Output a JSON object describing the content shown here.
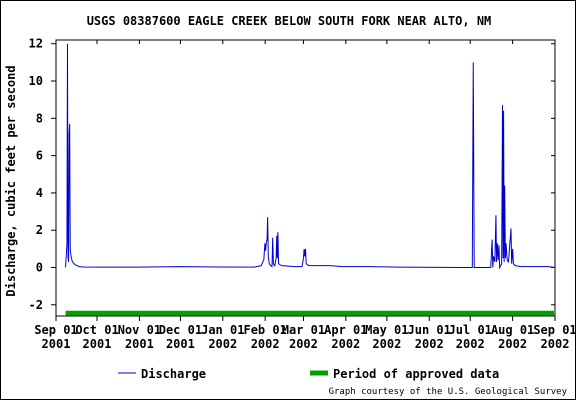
{
  "chart_data": {
    "type": "line",
    "title": "USGS 08387600 EAGLE CREEK BELOW SOUTH FORK NEAR ALTO, NM",
    "xlabel": "",
    "ylabel": "Discharge, cubic feet per second",
    "ylim": [
      -2.6,
      12.2
    ],
    "yticks": [
      -2,
      0,
      2,
      4,
      6,
      8,
      10,
      12
    ],
    "xlim": [
      0,
      365
    ],
    "xticks": [
      {
        "day": 0,
        "month": "Sep 01",
        "year": "2001"
      },
      {
        "day": 30,
        "month": "Oct 01",
        "year": "2001"
      },
      {
        "day": 61,
        "month": "Nov 01",
        "year": "2001"
      },
      {
        "day": 91,
        "month": "Dec 01",
        "year": "2001"
      },
      {
        "day": 122,
        "month": "Jan 01",
        "year": "2002"
      },
      {
        "day": 153,
        "month": "Feb 01",
        "year": "2002"
      },
      {
        "day": 181,
        "month": "Mar 01",
        "year": "2002"
      },
      {
        "day": 212,
        "month": "Apr 01",
        "year": "2002"
      },
      {
        "day": 242,
        "month": "May 01",
        "year": "2002"
      },
      {
        "day": 273,
        "month": "Jun 01",
        "year": "2002"
      },
      {
        "day": 303,
        "month": "Jul 01",
        "year": "2002"
      },
      {
        "day": 334,
        "month": "Aug 01",
        "year": "2002"
      },
      {
        "day": 365,
        "month": "Sep 01",
        "year": "2002"
      }
    ],
    "grid": false,
    "legend_position": "bottom",
    "series": [
      {
        "name": "Discharge",
        "color": "#0000cc",
        "points": [
          [
            7,
            0.0
          ],
          [
            8,
            1.3
          ],
          [
            8.4,
            12.0
          ],
          [
            8.8,
            0.6
          ],
          [
            9.2,
            0.3
          ],
          [
            9.6,
            7.2
          ],
          [
            10.0,
            7.7
          ],
          [
            10.4,
            1.0
          ],
          [
            11,
            0.6
          ],
          [
            12,
            0.3
          ],
          [
            14,
            0.15
          ],
          [
            17,
            0.05
          ],
          [
            20,
            0.03
          ],
          [
            30,
            0.02
          ],
          [
            60,
            0.02
          ],
          [
            90,
            0.05
          ],
          [
            120,
            0.03
          ],
          [
            145,
            0.02
          ],
          [
            150,
            0.1
          ],
          [
            152,
            0.4
          ],
          [
            152.8,
            1.3
          ],
          [
            153.3,
            0.9
          ],
          [
            153.8,
            1.3
          ],
          [
            154.4,
            1.5
          ],
          [
            154.8,
            2.7
          ],
          [
            155.3,
            0.6
          ],
          [
            156,
            0.2
          ],
          [
            157,
            0.1
          ],
          [
            158,
            0.05
          ],
          [
            158.5,
            1.6
          ],
          [
            159,
            0.2
          ],
          [
            160,
            0.1
          ],
          [
            161,
            0.5
          ],
          [
            161.5,
            1.7
          ],
          [
            161.9,
            0.5
          ],
          [
            162.3,
            1.9
          ],
          [
            162.8,
            0.2
          ],
          [
            165,
            0.1
          ],
          [
            175,
            0.05
          ],
          [
            180,
            0.05
          ],
          [
            181,
            0.5
          ],
          [
            181.5,
            1.0
          ],
          [
            182,
            0.6
          ],
          [
            182.5,
            1.0
          ],
          [
            183,
            0.2
          ],
          [
            185,
            0.1
          ],
          [
            200,
            0.1
          ],
          [
            210,
            0.05
          ],
          [
            230,
            0.05
          ],
          [
            250,
            0.02
          ],
          [
            300,
            0.0
          ],
          [
            304.5,
            0.0
          ],
          [
            305.2,
            11.0
          ],
          [
            305.9,
            0.0
          ],
          [
            318,
            0.0
          ],
          [
            319,
            1.5
          ],
          [
            319.5,
            0.0
          ],
          [
            320,
            0.6
          ],
          [
            321,
            0.3
          ],
          [
            321.8,
            2.8
          ],
          [
            322.2,
            0.3
          ],
          [
            322.8,
            1.3
          ],
          [
            323.4,
            0.4
          ],
          [
            324,
            1.2
          ],
          [
            324.5,
            0.0
          ],
          [
            326,
            0.2
          ],
          [
            326.6,
            8.7
          ],
          [
            327,
            0.5
          ],
          [
            327.4,
            8.4
          ],
          [
            327.8,
            0.3
          ],
          [
            328.2,
            4.4
          ],
          [
            328.7,
            0.5
          ],
          [
            329.2,
            1.3
          ],
          [
            330,
            0.4
          ],
          [
            331,
            0.3
          ],
          [
            332.2,
            1.5
          ],
          [
            332.8,
            2.1
          ],
          [
            333.3,
            0.2
          ],
          [
            334,
            1.0
          ],
          [
            334.6,
            0.2
          ],
          [
            336,
            0.1
          ],
          [
            340,
            0.05
          ],
          [
            350,
            0.05
          ],
          [
            360,
            0.05
          ],
          [
            365,
            0.0
          ]
        ]
      },
      {
        "name": "Period of approved data",
        "color": "#00a000",
        "x_start": 7,
        "x_end": 365,
        "y": -2.45
      }
    ],
    "credit": "Graph courtesy of the U.S. Geological Survey"
  }
}
